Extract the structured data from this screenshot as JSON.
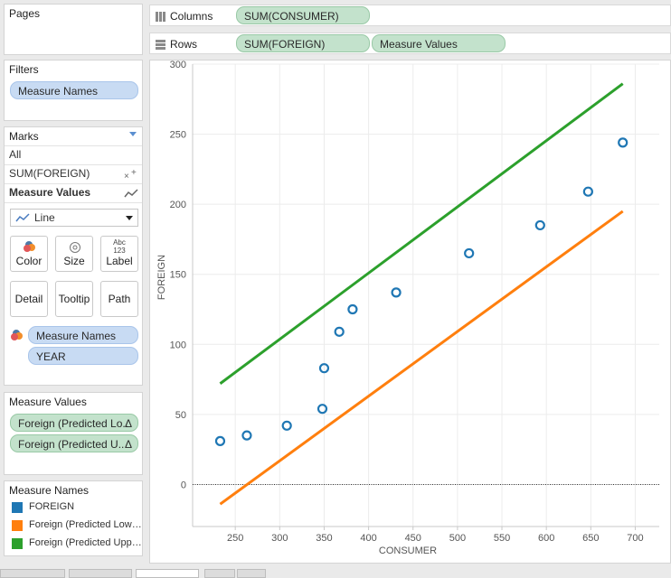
{
  "pages": {
    "title": "Pages"
  },
  "filters": {
    "title": "Filters",
    "pill": "Measure Names"
  },
  "marks": {
    "title": "Marks",
    "all": "All",
    "sum_foreign": "SUM(FOREIGN)",
    "measure_values": "Measure Values",
    "mark_type": "Line",
    "buttons": {
      "color": "Color",
      "size": "Size",
      "label": "Label",
      "detail": "Detail",
      "tooltip": "Tooltip",
      "path": "Path"
    },
    "label_icon_top": "Abc",
    "label_icon_bottom": "123",
    "fields": [
      "Measure Names",
      "YEAR"
    ]
  },
  "measure_values_card": {
    "title": "Measure Values",
    "pills": [
      "Foreign (Predicted Lo..",
      "Foreign (Predicted U.."
    ]
  },
  "legend": {
    "title": "Measure Names",
    "items": [
      {
        "label": "FOREIGN",
        "color": "#1f77b4"
      },
      {
        "label": "Foreign (Predicted Lower...",
        "color": "#ff7f0e"
      },
      {
        "label": "Foreign (Predicted Upper...",
        "color": "#2ca02c"
      }
    ]
  },
  "columns": {
    "label": "Columns",
    "pill": "SUM(CONSUMER)"
  },
  "rows": {
    "label": "Rows",
    "pills": [
      "SUM(FOREIGN)",
      "Measure Values"
    ]
  },
  "chart_data": {
    "type": "scatter",
    "xlabel": "CONSUMER",
    "ylabel": "FOREIGN",
    "xlim": [
      202,
      727
    ],
    "ylim": [
      -30,
      300
    ],
    "xticks": [
      250,
      300,
      350,
      400,
      450,
      500,
      550,
      600,
      650,
      700
    ],
    "yticks": [
      0,
      50,
      100,
      150,
      200,
      250,
      300
    ],
    "grid": true,
    "zero_line": true,
    "series": [
      {
        "name": "FOREIGN",
        "kind": "scatter",
        "color": "#1f77b4",
        "x": [
          233,
          263,
          308,
          348,
          350,
          367,
          382,
          431,
          513,
          593,
          647,
          686
        ],
        "y": [
          31,
          35,
          42,
          54,
          83,
          109,
          125,
          137,
          165,
          185,
          209,
          244
        ]
      },
      {
        "name": "Foreign (Predicted Lower...",
        "kind": "line",
        "color": "#ff7f0e",
        "x": [
          233,
          686
        ],
        "y": [
          -14,
          195
        ]
      },
      {
        "name": "Foreign (Predicted Upper...",
        "kind": "line",
        "color": "#2ca02c",
        "x": [
          233,
          686
        ],
        "y": [
          72,
          286
        ]
      }
    ]
  }
}
